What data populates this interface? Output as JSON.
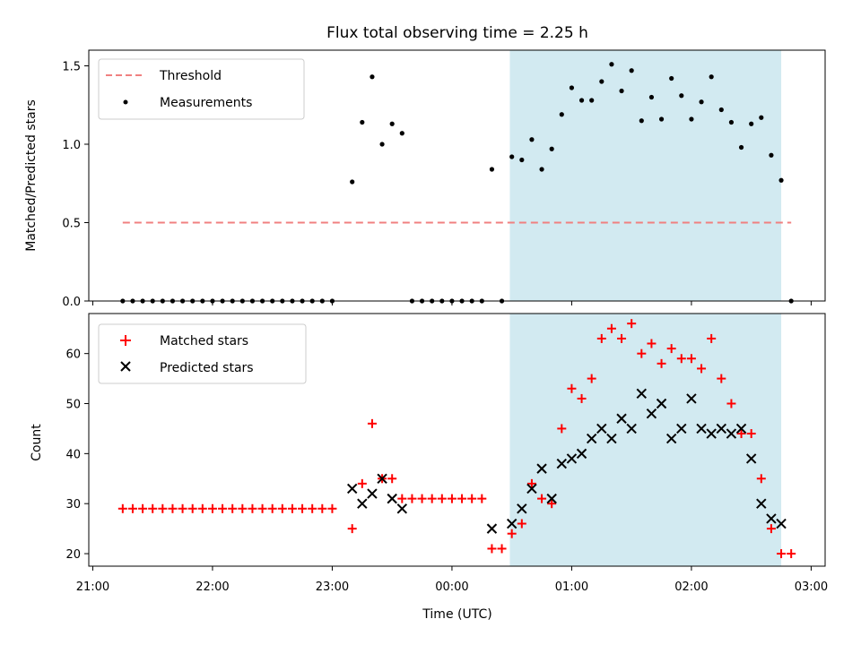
{
  "chart_data": [
    {
      "type": "scatter",
      "title": "Flux total observing time = 2.25 h",
      "xlabel": "",
      "ylabel": "Matched/Predicted stars",
      "ylim": [
        0,
        1.6
      ],
      "yticks": [
        "0.0",
        "0.5",
        "1.0",
        "1.5"
      ],
      "xlim": [
        "20:58",
        "03:07"
      ],
      "shaded_interval": [
        "00:29",
        "02:45"
      ],
      "shade_color": "#add8e6",
      "threshold": {
        "name": "Threshold",
        "value": 0.5,
        "x_start": "21:15",
        "x_end": "02:50",
        "color": "#f08080"
      },
      "legend": {
        "loc": "upper left",
        "entries": [
          "Threshold",
          "Measurements"
        ]
      },
      "series": [
        {
          "name": "Measurements",
          "marker": "dot",
          "color": "#000000",
          "points": [
            [
              "21:15",
              0
            ],
            [
              "21:20",
              0
            ],
            [
              "21:25",
              0
            ],
            [
              "21:30",
              0
            ],
            [
              "21:35",
              0
            ],
            [
              "21:40",
              0
            ],
            [
              "21:45",
              0
            ],
            [
              "21:50",
              0
            ],
            [
              "21:55",
              0
            ],
            [
              "22:00",
              0
            ],
            [
              "22:05",
              0
            ],
            [
              "22:10",
              0
            ],
            [
              "22:15",
              0
            ],
            [
              "22:20",
              0
            ],
            [
              "22:25",
              0
            ],
            [
              "22:30",
              0
            ],
            [
              "22:35",
              0
            ],
            [
              "22:40",
              0
            ],
            [
              "22:45",
              0
            ],
            [
              "22:50",
              0
            ],
            [
              "22:55",
              0
            ],
            [
              "23:00",
              0
            ],
            [
              "23:10",
              0.76
            ],
            [
              "23:15",
              1.14
            ],
            [
              "23:20",
              1.43
            ],
            [
              "23:25",
              1.0
            ],
            [
              "23:30",
              1.13
            ],
            [
              "23:35",
              1.07
            ],
            [
              "23:40",
              0
            ],
            [
              "23:45",
              0
            ],
            [
              "23:50",
              0
            ],
            [
              "23:55",
              0
            ],
            [
              "00:00",
              0
            ],
            [
              "00:05",
              0
            ],
            [
              "00:10",
              0
            ],
            [
              "00:15",
              0
            ],
            [
              "00:20",
              0.84
            ],
            [
              "00:25",
              0
            ],
            [
              "00:30",
              0.92
            ],
            [
              "00:35",
              0.9
            ],
            [
              "00:40",
              1.03
            ],
            [
              "00:45",
              0.84
            ],
            [
              "00:50",
              0.97
            ],
            [
              "00:55",
              1.19
            ],
            [
              "01:00",
              1.36
            ],
            [
              "01:05",
              1.28
            ],
            [
              "01:10",
              1.28
            ],
            [
              "01:15",
              1.4
            ],
            [
              "01:20",
              1.51
            ],
            [
              "01:25",
              1.34
            ],
            [
              "01:30",
              1.47
            ],
            [
              "01:35",
              1.15
            ],
            [
              "01:40",
              1.3
            ],
            [
              "01:45",
              1.16
            ],
            [
              "01:50",
              1.42
            ],
            [
              "01:55",
              1.31
            ],
            [
              "02:00",
              1.16
            ],
            [
              "02:05",
              1.27
            ],
            [
              "02:10",
              1.43
            ],
            [
              "02:15",
              1.22
            ],
            [
              "02:20",
              1.14
            ],
            [
              "02:25",
              0.98
            ],
            [
              "02:30",
              1.13
            ],
            [
              "02:35",
              1.17
            ],
            [
              "02:40",
              0.93
            ],
            [
              "02:45",
              0.77
            ],
            [
              "02:50",
              0
            ]
          ]
        }
      ]
    },
    {
      "type": "scatter",
      "title": "",
      "xlabel": "Time (UTC)",
      "ylabel": "Count",
      "ylim": [
        17.5,
        68
      ],
      "yticks": [
        "20",
        "30",
        "40",
        "50",
        "60"
      ],
      "xlim": [
        "20:58",
        "03:07"
      ],
      "xticks": [
        "21:00",
        "22:00",
        "23:00",
        "00:00",
        "01:00",
        "02:00",
        "03:00"
      ],
      "shaded_interval": [
        "00:29",
        "02:45"
      ],
      "shade_color": "#add8e6",
      "legend": {
        "loc": "upper left",
        "entries": [
          "Matched stars",
          "Predicted stars"
        ]
      },
      "series": [
        {
          "name": "Matched stars",
          "marker": "plus",
          "color": "#ff0000",
          "points": [
            [
              "21:15",
              29
            ],
            [
              "21:20",
              29
            ],
            [
              "21:25",
              29
            ],
            [
              "21:30",
              29
            ],
            [
              "21:35",
              29
            ],
            [
              "21:40",
              29
            ],
            [
              "21:45",
              29
            ],
            [
              "21:50",
              29
            ],
            [
              "21:55",
              29
            ],
            [
              "22:00",
              29
            ],
            [
              "22:05",
              29
            ],
            [
              "22:10",
              29
            ],
            [
              "22:15",
              29
            ],
            [
              "22:20",
              29
            ],
            [
              "22:25",
              29
            ],
            [
              "22:30",
              29
            ],
            [
              "22:35",
              29
            ],
            [
              "22:40",
              29
            ],
            [
              "22:45",
              29
            ],
            [
              "22:50",
              29
            ],
            [
              "22:55",
              29
            ],
            [
              "23:00",
              29
            ],
            [
              "23:10",
              25
            ],
            [
              "23:15",
              34
            ],
            [
              "23:20",
              46
            ],
            [
              "23:25",
              35
            ],
            [
              "23:30",
              35
            ],
            [
              "23:35",
              31
            ],
            [
              "23:40",
              31
            ],
            [
              "23:45",
              31
            ],
            [
              "23:50",
              31
            ],
            [
              "23:55",
              31
            ],
            [
              "00:00",
              31
            ],
            [
              "00:05",
              31
            ],
            [
              "00:10",
              31
            ],
            [
              "00:15",
              31
            ],
            [
              "00:20",
              21
            ],
            [
              "00:25",
              21
            ],
            [
              "00:30",
              24
            ],
            [
              "00:35",
              26
            ],
            [
              "00:40",
              34
            ],
            [
              "00:45",
              31
            ],
            [
              "00:50",
              30
            ],
            [
              "00:55",
              45
            ],
            [
              "01:00",
              53
            ],
            [
              "01:05",
              51
            ],
            [
              "01:10",
              55
            ],
            [
              "01:15",
              63
            ],
            [
              "01:20",
              65
            ],
            [
              "01:25",
              63
            ],
            [
              "01:30",
              66
            ],
            [
              "01:35",
              60
            ],
            [
              "01:40",
              62
            ],
            [
              "01:45",
              58
            ],
            [
              "01:50",
              61
            ],
            [
              "01:55",
              59
            ],
            [
              "02:00",
              59
            ],
            [
              "02:05",
              57
            ],
            [
              "02:10",
              63
            ],
            [
              "02:15",
              55
            ],
            [
              "02:20",
              50
            ],
            [
              "02:25",
              44
            ],
            [
              "02:30",
              44
            ],
            [
              "02:35",
              35
            ],
            [
              "02:40",
              25
            ],
            [
              "02:45",
              20
            ],
            [
              "02:50",
              20
            ]
          ]
        },
        {
          "name": "Predicted stars",
          "marker": "x",
          "color": "#000000",
          "points": [
            [
              "23:10",
              33
            ],
            [
              "23:15",
              30
            ],
            [
              "23:20",
              32
            ],
            [
              "23:25",
              35
            ],
            [
              "23:30",
              31
            ],
            [
              "23:35",
              29
            ],
            [
              "00:20",
              25
            ],
            [
              "00:30",
              26
            ],
            [
              "00:35",
              29
            ],
            [
              "00:40",
              33
            ],
            [
              "00:45",
              37
            ],
            [
              "00:50",
              31
            ],
            [
              "00:55",
              38
            ],
            [
              "01:00",
              39
            ],
            [
              "01:05",
              40
            ],
            [
              "01:10",
              43
            ],
            [
              "01:15",
              45
            ],
            [
              "01:20",
              43
            ],
            [
              "01:25",
              47
            ],
            [
              "01:30",
              45
            ],
            [
              "01:35",
              52
            ],
            [
              "01:40",
              48
            ],
            [
              "01:45",
              50
            ],
            [
              "01:50",
              43
            ],
            [
              "01:55",
              45
            ],
            [
              "02:00",
              51
            ],
            [
              "02:05",
              45
            ],
            [
              "02:10",
              44
            ],
            [
              "02:15",
              45
            ],
            [
              "02:20",
              44
            ],
            [
              "02:25",
              45
            ],
            [
              "02:30",
              39
            ],
            [
              "02:35",
              30
            ],
            [
              "02:40",
              27
            ],
            [
              "02:45",
              26
            ]
          ]
        }
      ]
    }
  ]
}
